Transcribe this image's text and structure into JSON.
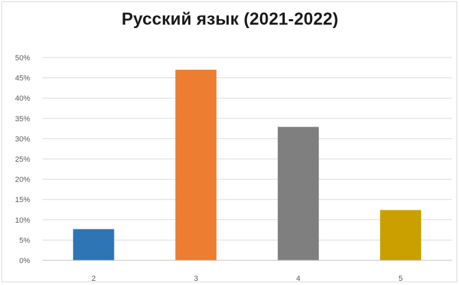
{
  "chart_data": {
    "type": "bar",
    "title": "Русский язык (2021-2022)",
    "xlabel": "",
    "ylabel": "",
    "categories": [
      "2",
      "3",
      "4",
      "5"
    ],
    "values": [
      7.7,
      47.0,
      32.9,
      12.4
    ],
    "value_unit": "%",
    "colors": [
      "#2e75b6",
      "#ed7d31",
      "#7f7f7f",
      "#c9a000"
    ],
    "ylim": [
      0,
      50
    ],
    "yticks": [
      0,
      5,
      10,
      15,
      20,
      25,
      30,
      35,
      40,
      45,
      50
    ],
    "ytick_labels": [
      "0%",
      "5%",
      "10%",
      "15%",
      "20%",
      "25%",
      "30%",
      "35%",
      "40%",
      "45%",
      "50%"
    ],
    "grid": true,
    "legend": "none"
  }
}
